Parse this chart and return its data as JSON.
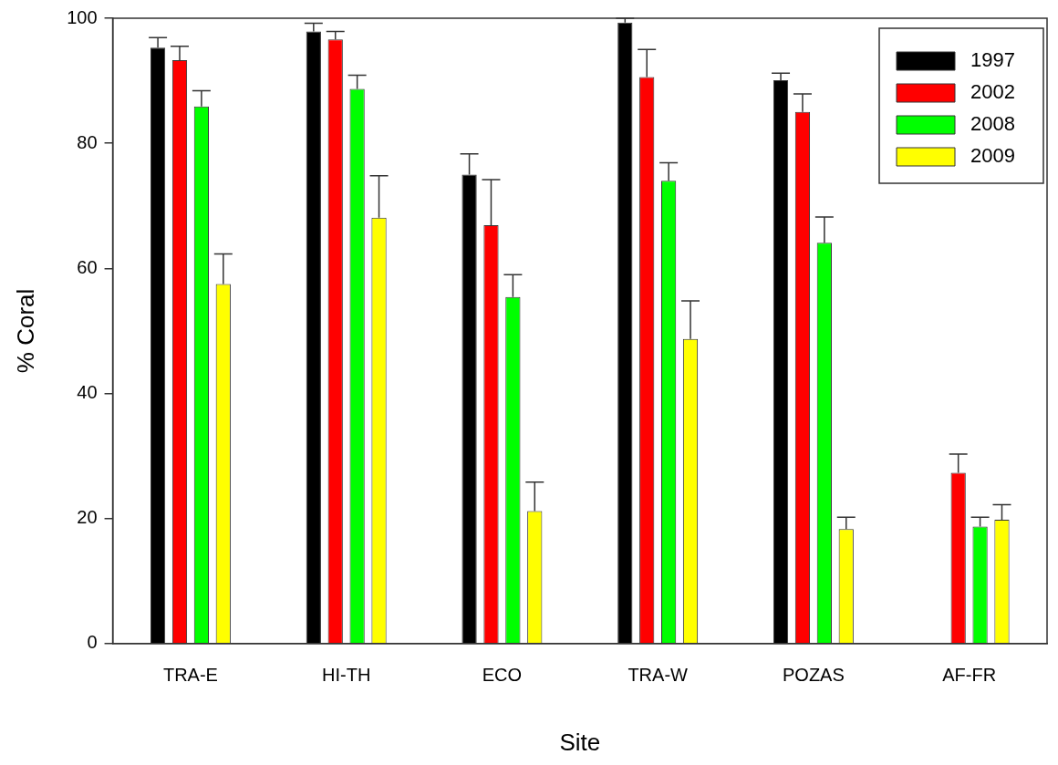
{
  "chart_data": {
    "type": "bar",
    "xlabel": "Site",
    "ylabel": "% Coral",
    "categories": [
      "TRA-E",
      "HI-TH",
      "ECO",
      "TRA-W",
      "POZAS",
      "AF-FR"
    ],
    "series": [
      {
        "name": "1997",
        "color": "#000000",
        "values": [
          95.3,
          97.9,
          75.0,
          99.3,
          90.1,
          null
        ],
        "errors": [
          [
            95.3,
            96.9
          ],
          [
            97.9,
            99.2
          ],
          [
            75.0,
            78.3
          ],
          [
            99.3,
            100
          ],
          [
            90.1,
            91.2
          ],
          null
        ]
      },
      {
        "name": "2002",
        "color": "#ff0000",
        "values": [
          93.3,
          96.6,
          66.9,
          90.6,
          85.0,
          27.3
        ],
        "errors": [
          [
            93.3,
            95.5
          ],
          [
            96.6,
            97.9
          ],
          [
            66.9,
            74.2
          ],
          [
            90.6,
            95.0
          ],
          [
            85.0,
            87.9
          ],
          [
            27.3,
            30.3
          ]
        ]
      },
      {
        "name": "2008",
        "color": "#00ff00",
        "values": [
          85.9,
          88.7,
          55.4,
          74.0,
          64.1,
          18.7
        ],
        "errors": [
          [
            85.9,
            88.4
          ],
          [
            88.7,
            90.9
          ],
          [
            55.4,
            59.0
          ],
          [
            74.0,
            76.9
          ],
          [
            64.1,
            68.2
          ],
          [
            18.7,
            20.2
          ]
        ]
      },
      {
        "name": "2009",
        "color": "#ffff00",
        "values": [
          57.5,
          68.1,
          21.2,
          48.7,
          18.3,
          19.8
        ],
        "errors": [
          [
            57.5,
            62.3
          ],
          [
            68.1,
            74.8
          ],
          [
            21.2,
            25.8
          ],
          [
            48.7,
            54.8
          ],
          [
            18.3,
            20.2
          ],
          [
            19.8,
            22.2
          ]
        ]
      }
    ],
    "ylim": [
      0,
      100
    ],
    "yticks": [
      0,
      20,
      40,
      60,
      80,
      100
    ],
    "grid": false,
    "legend": "top right"
  }
}
